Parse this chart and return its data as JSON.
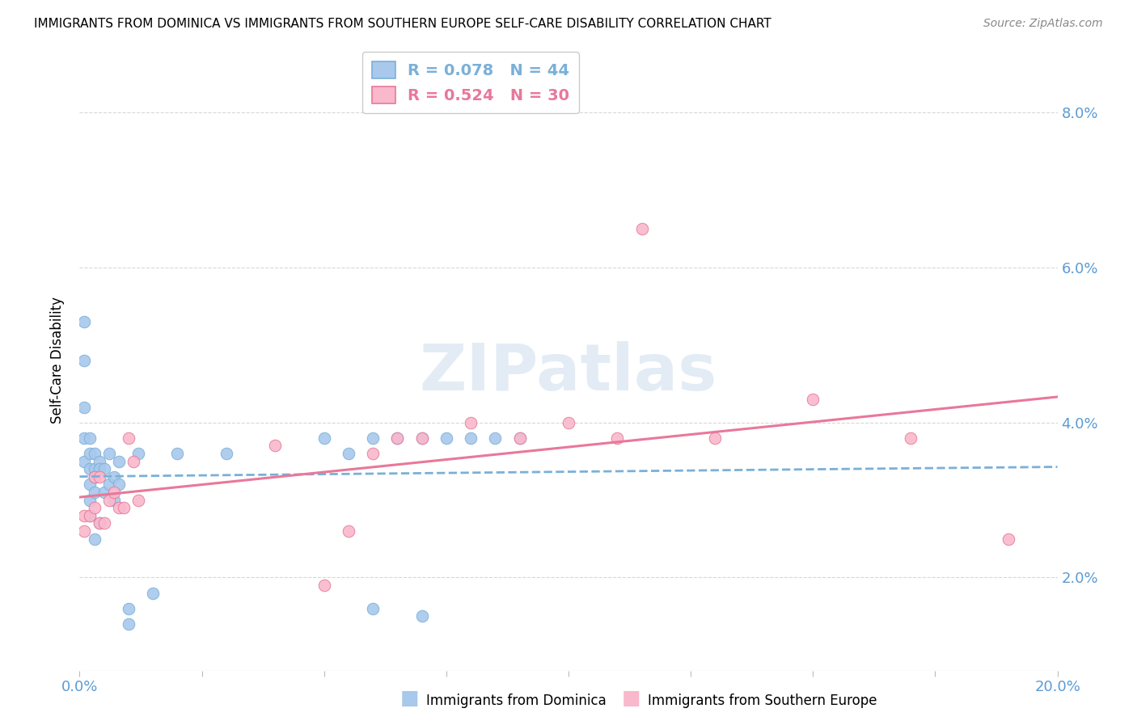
{
  "title": "IMMIGRANTS FROM DOMINICA VS IMMIGRANTS FROM SOUTHERN EUROPE SELF-CARE DISABILITY CORRELATION CHART",
  "source": "Source: ZipAtlas.com",
  "ylabel": "Self-Care Disability",
  "ylabel_right_ticks": [
    "8.0%",
    "6.0%",
    "4.0%",
    "2.0%"
  ],
  "ylabel_right_vals": [
    0.08,
    0.06,
    0.04,
    0.02
  ],
  "xlim": [
    0.0,
    0.2
  ],
  "ylim": [
    0.008,
    0.088
  ],
  "color_dominica": "#a8c8ec",
  "color_southern": "#f9b8cc",
  "color_dominica_edge": "#7ab0d8",
  "color_southern_edge": "#e87898",
  "color_dominica_line": "#7ab0d8",
  "color_southern_line": "#e8789a",
  "tick_color": "#5b9bd5",
  "grid_color": "#d8d8d8",
  "dominica_x": [
    0.001,
    0.001,
    0.001,
    0.001,
    0.001,
    0.002,
    0.002,
    0.002,
    0.002,
    0.002,
    0.002,
    0.003,
    0.003,
    0.003,
    0.003,
    0.003,
    0.004,
    0.004,
    0.004,
    0.005,
    0.005,
    0.006,
    0.006,
    0.007,
    0.007,
    0.008,
    0.008,
    0.01,
    0.01,
    0.012,
    0.015,
    0.02,
    0.03,
    0.05,
    0.055,
    0.06,
    0.06,
    0.065,
    0.07,
    0.07,
    0.075,
    0.08,
    0.085,
    0.09
  ],
  "dominica_y": [
    0.053,
    0.048,
    0.042,
    0.038,
    0.035,
    0.038,
    0.036,
    0.034,
    0.032,
    0.03,
    0.028,
    0.036,
    0.034,
    0.033,
    0.031,
    0.025,
    0.035,
    0.034,
    0.027,
    0.034,
    0.031,
    0.036,
    0.032,
    0.033,
    0.03,
    0.035,
    0.032,
    0.016,
    0.014,
    0.036,
    0.018,
    0.036,
    0.036,
    0.038,
    0.036,
    0.038,
    0.016,
    0.038,
    0.015,
    0.038,
    0.038,
    0.038,
    0.038,
    0.038
  ],
  "southern_x": [
    0.001,
    0.001,
    0.002,
    0.003,
    0.003,
    0.004,
    0.004,
    0.005,
    0.006,
    0.007,
    0.008,
    0.009,
    0.01,
    0.011,
    0.012,
    0.04,
    0.05,
    0.055,
    0.06,
    0.065,
    0.07,
    0.08,
    0.09,
    0.1,
    0.11,
    0.115,
    0.13,
    0.15,
    0.17,
    0.19
  ],
  "southern_y": [
    0.028,
    0.026,
    0.028,
    0.033,
    0.029,
    0.033,
    0.027,
    0.027,
    0.03,
    0.031,
    0.029,
    0.029,
    0.038,
    0.035,
    0.03,
    0.037,
    0.019,
    0.026,
    0.036,
    0.038,
    0.038,
    0.04,
    0.038,
    0.04,
    0.038,
    0.065,
    0.038,
    0.043,
    0.038,
    0.025
  ]
}
